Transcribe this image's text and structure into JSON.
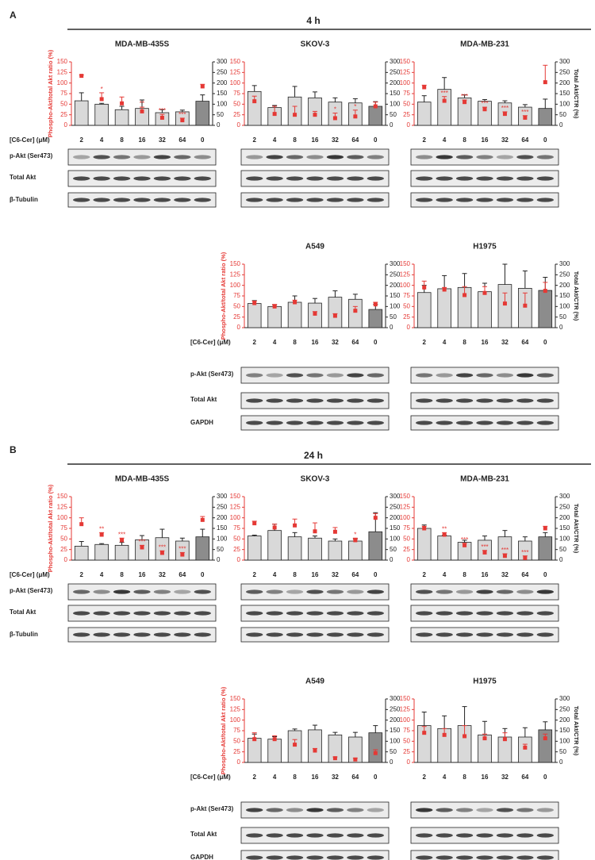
{
  "panels": [
    {
      "label": "A",
      "title": "4 h",
      "rows": [
        {
          "dose_label": "[C6-Cer] (μM)",
          "blot_labels": [
            "p-Akt (Ser473)",
            "Total Akt",
            "β-Tubulin"
          ]
        },
        {
          "dose_label": "[C6-Cer] (μM)",
          "blot_labels": [
            "p-Akt (Ser473)",
            "Total Akt",
            "GAPDH"
          ]
        }
      ]
    },
    {
      "label": "B",
      "title": "24 h",
      "rows": [
        {
          "dose_label": "[C6-Cer] (μM)",
          "blot_labels": [
            "p-Akt (Ser473)",
            "Total Akt",
            "β-Tubulin"
          ]
        },
        {
          "dose_label": "[C6-Cer] (μM)",
          "blot_labels": [
            "p-Akt (Ser473)",
            "Total Akt",
            "GAPDH"
          ]
        }
      ]
    }
  ],
  "chart_data": [
    {
      "type": "bar",
      "title": "MDA-MB-435S",
      "ylabel": "Phospho-Akt/total Akt ratio (%)",
      "categories": [
        "2",
        "4",
        "8",
        "16",
        "32",
        "64",
        "0"
      ],
      "ylim": [
        0,
        150
      ],
      "yticks": [
        0,
        25,
        50,
        75,
        100,
        125,
        150
      ],
      "y2lim": [
        0,
        300
      ],
      "y2ticks": [
        0,
        50,
        100,
        150,
        200,
        250,
        300
      ],
      "series": [
        {
          "axis": "y2",
          "colors": [
            "#d9d9d9",
            "#d9d9d9",
            "#d9d9d9",
            "#d9d9d9",
            "#d9d9d9",
            "#d9d9d9",
            "#8c8c8c"
          ],
          "values": [
            116,
            100,
            74,
            80,
            60,
            64,
            114
          ],
          "errors": [
            38,
            4,
            16,
            40,
            14,
            8,
            30
          ]
        },
        {
          "type": "scatter",
          "color": "#e53935",
          "values": [
            117,
            62,
            52,
            33,
            18,
            12,
            92
          ],
          "errors": [
            2,
            15,
            15,
            10,
            8,
            5,
            5
          ]
        }
      ],
      "stars": [
        null,
        "*",
        null,
        "**",
        "***",
        "***",
        null
      ]
    },
    {
      "type": "bar",
      "title": "SKOV-3",
      "categories": [
        "2",
        "4",
        "8",
        "16",
        "32",
        "64",
        "0"
      ],
      "ylim": [
        0,
        150
      ],
      "yticks": [
        0,
        25,
        50,
        75,
        100,
        125,
        150
      ],
      "y2lim": [
        0,
        300
      ],
      "y2ticks": [
        0,
        50,
        100,
        150,
        200,
        250,
        300
      ],
      "series": [
        {
          "axis": "y2",
          "colors": [
            "#d9d9d9",
            "#d9d9d9",
            "#d9d9d9",
            "#d9d9d9",
            "#d9d9d9",
            "#d9d9d9",
            "#8c8c8c"
          ],
          "values": [
            160,
            84,
            134,
            130,
            110,
            106,
            90
          ],
          "errors": [
            28,
            10,
            50,
            28,
            20,
            20,
            22
          ]
        },
        {
          "type": "scatter",
          "color": "#e53935",
          "values": [
            57,
            27,
            25,
            25,
            17,
            21,
            45
          ],
          "errors": [
            12,
            18,
            20,
            8,
            12,
            15,
            10
          ]
        }
      ],
      "stars": [
        null,
        null,
        null,
        null,
        "*",
        "*",
        null
      ]
    },
    {
      "type": "bar",
      "title": "MDA-MB-231",
      "y2label": "Total Akt/CTR (%)",
      "categories": [
        "2",
        "4",
        "8",
        "16",
        "32",
        "64",
        "0"
      ],
      "ylim": [
        0,
        150
      ],
      "yticks": [
        0,
        25,
        50,
        75,
        100,
        125,
        150
      ],
      "y2lim": [
        0,
        300
      ],
      "y2ticks": [
        0,
        50,
        100,
        150,
        200,
        250,
        300
      ],
      "series": [
        {
          "axis": "y2",
          "colors": [
            "#d9d9d9",
            "#d9d9d9",
            "#d9d9d9",
            "#d9d9d9",
            "#d9d9d9",
            "#d9d9d9",
            "#8c8c8c"
          ],
          "values": [
            110,
            170,
            130,
            114,
            106,
            86,
            80
          ],
          "errors": [
            30,
            56,
            14,
            8,
            10,
            12,
            44
          ]
        },
        {
          "type": "scatter",
          "color": "#e53935",
          "values": [
            90,
            58,
            55,
            38,
            27,
            18,
            102
          ],
          "errors": [
            5,
            10,
            5,
            5,
            5,
            5,
            40
          ]
        }
      ],
      "stars": [
        null,
        "***",
        "***",
        "***",
        "***",
        "***",
        null
      ]
    },
    {
      "type": "bar",
      "title": "A549",
      "ylabel": "Phospho-Akt/total Akt ratio (%)",
      "categories": [
        "2",
        "4",
        "8",
        "16",
        "32",
        "64",
        "0"
      ],
      "ylim": [
        0,
        150
      ],
      "yticks": [
        0,
        25,
        50,
        75,
        100,
        125,
        150
      ],
      "y2lim": [
        0,
        300
      ],
      "y2ticks": [
        0,
        50,
        100,
        150,
        200,
        250,
        300
      ],
      "series": [
        {
          "axis": "y2",
          "colors": [
            "#d9d9d9",
            "#d9d9d9",
            "#d9d9d9",
            "#d9d9d9",
            "#d9d9d9",
            "#d9d9d9",
            "#8c8c8c"
          ],
          "values": [
            114,
            100,
            120,
            116,
            144,
            134,
            86
          ],
          "errors": [
            14,
            8,
            30,
            22,
            30,
            24,
            24
          ]
        },
        {
          "type": "scatter",
          "color": "#e53935",
          "values": [
            58,
            50,
            60,
            33,
            28,
            40,
            55
          ],
          "errors": [
            5,
            5,
            5,
            5,
            5,
            10,
            5
          ]
        }
      ]
    },
    {
      "type": "bar",
      "title": "H1975",
      "y2label": "Total Akt/CTR (%)",
      "categories": [
        "2",
        "4",
        "8",
        "16",
        "32",
        "64",
        "0"
      ],
      "ylim": [
        0,
        150
      ],
      "yticks": [
        0,
        25,
        50,
        75,
        100,
        125,
        150
      ],
      "y2lim": [
        0,
        300
      ],
      "y2ticks": [
        0,
        50,
        100,
        150,
        200,
        250,
        300
      ],
      "series": [
        {
          "axis": "y2",
          "colors": [
            "#d9d9d9",
            "#d9d9d9",
            "#d9d9d9",
            "#d9d9d9",
            "#d9d9d9",
            "#d9d9d9",
            "#8c8c8c"
          ],
          "values": [
            166,
            184,
            190,
            170,
            204,
            186,
            176
          ],
          "errors": [
            34,
            62,
            66,
            40,
            96,
            82,
            62
          ]
        },
        {
          "type": "scatter",
          "color": "#e53935",
          "values": [
            95,
            90,
            77,
            82,
            57,
            52,
            87
          ],
          "errors": [
            15,
            5,
            20,
            15,
            25,
            30,
            20
          ]
        }
      ]
    },
    {
      "type": "bar",
      "title": "MDA-MB-435S",
      "ylabel": "Phospho-Akt/total Akt ratio (%)",
      "categories": [
        "2",
        "4",
        "8",
        "16",
        "32",
        "64",
        "0"
      ],
      "ylim": [
        0,
        150
      ],
      "yticks": [
        0,
        25,
        50,
        75,
        100,
        125,
        150
      ],
      "y2lim": [
        0,
        300
      ],
      "y2ticks": [
        0,
        50,
        100,
        150,
        200,
        250,
        300
      ],
      "series": [
        {
          "axis": "y2",
          "colors": [
            "#d9d9d9",
            "#d9d9d9",
            "#d9d9d9",
            "#d9d9d9",
            "#d9d9d9",
            "#d9d9d9",
            "#8c8c8c"
          ],
          "values": [
            66,
            74,
            70,
            96,
            106,
            90,
            110
          ],
          "errors": [
            22,
            4,
            14,
            20,
            40,
            14,
            36
          ]
        },
        {
          "type": "scatter",
          "color": "#e53935",
          "values": [
            85,
            60,
            47,
            30,
            17,
            13,
            95
          ],
          "errors": [
            15,
            5,
            5,
            5,
            5,
            5,
            8
          ]
        }
      ],
      "stars": [
        null,
        "**",
        "***",
        "***",
        "***",
        "***",
        null
      ]
    },
    {
      "type": "bar",
      "title": "SKOV-3",
      "categories": [
        "2",
        "4",
        "8",
        "16",
        "32",
        "64",
        "0"
      ],
      "ylim": [
        0,
        150
      ],
      "yticks": [
        0,
        25,
        50,
        75,
        100,
        125,
        150
      ],
      "y2lim": [
        0,
        300
      ],
      "y2ticks": [
        0,
        50,
        100,
        150,
        200,
        250,
        300
      ],
      "series": [
        {
          "axis": "y2",
          "colors": [
            "#d9d9d9",
            "#d9d9d9",
            "#d9d9d9",
            "#d9d9d9",
            "#d9d9d9",
            "#d9d9d9",
            "#8c8c8c"
          ],
          "values": [
            114,
            140,
            110,
            104,
            90,
            90,
            134
          ],
          "errors": [
            4,
            30,
            20,
            10,
            10,
            10,
            90
          ]
        },
        {
          "type": "scatter",
          "color": "#e53935",
          "values": [
            87,
            77,
            82,
            68,
            67,
            47,
            100
          ],
          "errors": [
            5,
            8,
            15,
            20,
            10,
            5,
            10
          ]
        }
      ],
      "stars": [
        null,
        null,
        null,
        null,
        null,
        "*",
        null
      ]
    },
    {
      "type": "bar",
      "title": "MDA-MB-231",
      "y2label": "Total Akt/CTR (%)",
      "categories": [
        "2",
        "4",
        "8",
        "16",
        "32",
        "64",
        "0"
      ],
      "ylim": [
        0,
        150
      ],
      "yticks": [
        0,
        25,
        50,
        75,
        100,
        125,
        150
      ],
      "y2lim": [
        0,
        300
      ],
      "y2ticks": [
        0,
        50,
        100,
        150,
        200,
        250,
        300
      ],
      "series": [
        {
          "axis": "y2",
          "colors": [
            "#d9d9d9",
            "#d9d9d9",
            "#d9d9d9",
            "#d9d9d9",
            "#d9d9d9",
            "#d9d9d9",
            "#8c8c8c"
          ],
          "values": [
            150,
            114,
            84,
            94,
            110,
            90,
            110
          ],
          "errors": [
            16,
            4,
            10,
            20,
            30,
            20,
            20
          ]
        },
        {
          "type": "scatter",
          "color": "#e53935",
          "values": [
            75,
            60,
            35,
            18,
            10,
            5,
            75
          ],
          "errors": [
            5,
            5,
            5,
            5,
            5,
            5,
            5
          ]
        }
      ],
      "stars": [
        null,
        "**",
        "***",
        "***",
        "***",
        "***",
        null
      ]
    },
    {
      "type": "bar",
      "title": "A549",
      "ylabel": "Phospho-Akt/total Akt ratio (%)",
      "categories": [
        "2",
        "4",
        "8",
        "16",
        "32",
        "64",
        "0"
      ],
      "ylim": [
        0,
        150
      ],
      "yticks": [
        0,
        25,
        50,
        75,
        100,
        125,
        150
      ],
      "y2lim": [
        0,
        300
      ],
      "y2ticks": [
        0,
        50,
        100,
        150,
        200,
        250,
        300
      ],
      "series": [
        {
          "axis": "y2",
          "colors": [
            "#d9d9d9",
            "#d9d9d9",
            "#d9d9d9",
            "#d9d9d9",
            "#d9d9d9",
            "#d9d9d9",
            "#8c8c8c"
          ],
          "values": [
            114,
            110,
            150,
            154,
            130,
            120,
            140
          ],
          "errors": [
            20,
            12,
            8,
            22,
            12,
            22,
            34
          ]
        },
        {
          "type": "scatter",
          "color": "#e53935",
          "values": [
            55,
            55,
            42,
            28,
            10,
            7,
            22
          ],
          "errors": [
            15,
            8,
            12,
            5,
            3,
            3,
            8
          ]
        }
      ]
    },
    {
      "type": "bar",
      "title": "H1975",
      "y2label": "Total Akt/CTR (%)",
      "categories": [
        "2",
        "4",
        "8",
        "16",
        "32",
        "64",
        "0"
      ],
      "ylim": [
        0,
        150
      ],
      "yticks": [
        0,
        25,
        50,
        75,
        100,
        125,
        150
      ],
      "y2lim": [
        0,
        300
      ],
      "y2ticks": [
        0,
        50,
        100,
        150,
        200,
        250,
        300
      ],
      "series": [
        {
          "axis": "y2",
          "colors": [
            "#d9d9d9",
            "#d9d9d9",
            "#d9d9d9",
            "#d9d9d9",
            "#d9d9d9",
            "#d9d9d9",
            "#8c8c8c"
          ],
          "values": [
            174,
            160,
            174,
            130,
            120,
            120,
            154
          ],
          "errors": [
            64,
            60,
            90,
            64,
            40,
            44,
            38
          ]
        },
        {
          "type": "scatter",
          "color": "#e53935",
          "values": [
            70,
            65,
            62,
            57,
            55,
            35,
            57
          ],
          "errors": [
            15,
            15,
            25,
            10,
            15,
            8,
            10
          ]
        }
      ]
    }
  ]
}
